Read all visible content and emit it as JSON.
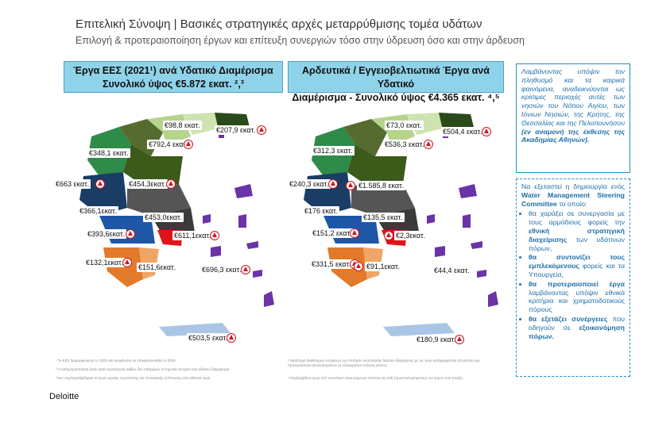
{
  "title": "Επιτελική Σύνοψη | Βασικές στρατηγικές αρχές μεταρρύθμισης τομέα υδάτων",
  "subtitle": "Επιλογή & προτεραιοποίηση έργων και επίτευξη συνεργιών τόσο στην ύδρευση όσο και στην άρδευση",
  "left_panel": {
    "header_line1": "Έργα ΕΕΣ (2021¹) ανά Υδατικό Διαμέρισμα",
    "header_line2": "Συνολικό ύψος €5.872 εκατ. ²,³",
    "labels": [
      "€98,8 εκατ.",
      "€207,9 εκατ.",
      "€792,4 εκατ.",
      "€348,1 εκατ.",
      "€663 εκατ.",
      "€454,3εκατ.",
      "€366,1εκατ.",
      "€453,0εκατ.",
      "€393,6εκατ.",
      "€611,1εκατ.",
      "€132,1εκατ.",
      "€151,6εκατ.",
      "€696,3 εκατ.",
      "€503,5 εκατ."
    ]
  },
  "right_panel": {
    "header_line1": "Αρδευτικά / Εγγειοβελτιωτικά Έργα ανά Υδατικό",
    "header_line2": "Διαμέρισμα - Συνολικό ύψος €4.365 εκατ. ⁴,⁵",
    "labels": [
      "€73,0 εκατ.",
      "€504,4 εκατ.",
      "€536,3 εκατ.",
      "€312,3 εκατ.",
      "€240,3 εκατ.",
      "€1.585,8 εκατ.",
      "€176 εκατ.",
      "€135,5 εκατ.",
      "€151,2 εκατ.",
      "€2,3εκατ.",
      "€331,5 εκατ.",
      "€91,1εκατ.",
      "€44,4 εκατ.",
      "€180,9 εκατ."
    ]
  },
  "note1": {
    "text": "Λαμβάνοντας υπόψιν τον πληθυσμό και τα καιρικά φαινόμενα, αναδεικνύονται ως κρίσιμες περιοχές αυτές των νησιών του Νότιου Αιγίου, των Ιόνιων Νησιών, της Κρήτης, της Θεσσαλίας και της Πελοποννήσου",
    "emphasis": "(εν αναμονή της έκθεσης της Ακαδημίας Αθηνών)."
  },
  "note2": {
    "intro": "Να εξεταστεί η δημιουργία ενός",
    "committee": "Water Management Steering Committee",
    "intro_end": "το οποίο:",
    "bullets": [
      {
        "pre": "θα χαράξει σε συνεργασία με τους αρμόδιους φορείς την",
        "bold": "εθνική στρατηγική διαχείρισης",
        "post": "των υδάτινων πόρων,"
      },
      {
        "pre": "",
        "bold": "θα συντονίζει τους εμπλεκόμενους",
        "post": "φορείς και τα Υπουργεία,"
      },
      {
        "pre": "",
        "bold": "θα προτεραιοποιεί έργα",
        "post": "λαμβάνοντας υπόψιν εθνικά κριτήρια και χρηματοδοτικούς πόρους"
      },
      {
        "pre": "",
        "bold": "θα εξετάζει συνέργειες",
        "post": "που οδηγούν σε"
      },
      {
        "pre": "",
        "bold": "εξοικονόμηση πόρων.",
        "post": ""
      }
    ]
  },
  "footnotes_left": [
    "¹ Το ΕΕΣ διαμορφώνεται το 2022 και αναμένεται να επικαιροποιηθεί το 2025",
    "² Η κατηγοριοποίηση έγινε κατά προσέγγιση καθώς δεν υπάρχουν τα σχετικά στοιχεία ανά υδατικό διαμέρισμα",
    "³ Δεν συμπεριλήφθηκαν τα έργα ευρείας προοπτικής και επιτοκιακής επίπτωσης στα υδάτινα έργα"
  ],
  "footnotes_right": [
    "⁴ Μελέτημα διαθέσιμων στοιχείων ως επιπλεόν υλοποίησης δεικτών διαχείρισης με ως όσοι καταγραφόνται αποτελούν μια",
    "προτεραιότητα αποτελεσμάτων με ελλειμμάτων ετήσιας κόστος",
    "⁵ Περιλαμβάνει έργα 127 συνολικού απαιτούμενου κόστους €1,33δ (προϋπολογισμένου) του έργου που ένταξη"
  ],
  "brand": "Deloitte",
  "colors": {
    "header_bg": "#8fd3ea",
    "accent_blue": "#1f8fc0",
    "warning_red": "#d0141c"
  }
}
